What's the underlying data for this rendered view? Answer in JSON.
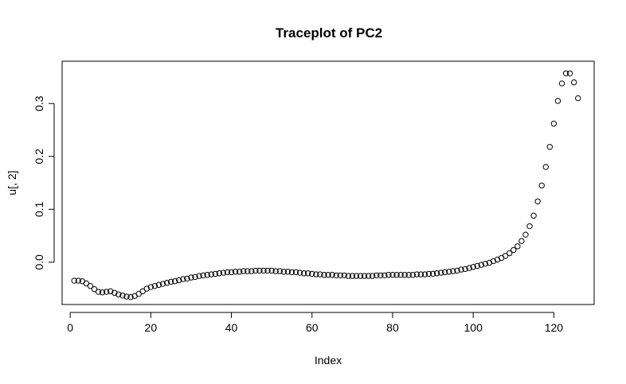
{
  "chart_data": {
    "type": "scatter",
    "title": "Traceplot of PC2",
    "xlabel": "Index",
    "ylabel": "u[, 2]",
    "xlim": [
      -2,
      130
    ],
    "ylim": [
      -0.08,
      0.38
    ],
    "x_ticks": [
      0,
      20,
      40,
      60,
      80,
      100,
      120
    ],
    "y_ticks": [
      0.0,
      0.1,
      0.2,
      0.3
    ],
    "x_tick_labels": [
      "0",
      "20",
      "40",
      "60",
      "80",
      "100",
      "120"
    ],
    "y_tick_labels": [
      "0.0",
      "0.1",
      "0.2",
      "0.3"
    ],
    "grid": false,
    "legend": "none",
    "marker": "open-circle",
    "color": "#000000",
    "series": [
      {
        "x": [
          1,
          2,
          3,
          4,
          5,
          6,
          7,
          8,
          9,
          10,
          11,
          12,
          13,
          14,
          15,
          16,
          17,
          18,
          19,
          20,
          21,
          22,
          23,
          24,
          25,
          26,
          27,
          28,
          29,
          30,
          31,
          32,
          33,
          34,
          35,
          36,
          37,
          38,
          39,
          40,
          41,
          42,
          43,
          44,
          45,
          46,
          47,
          48,
          49,
          50,
          51,
          52,
          53,
          54,
          55,
          56,
          57,
          58,
          59,
          60,
          61,
          62,
          63,
          64,
          65,
          66,
          67,
          68,
          69,
          70,
          71,
          72,
          73,
          74,
          75,
          76,
          77,
          78,
          79,
          80,
          81,
          82,
          83,
          84,
          85,
          86,
          87,
          88,
          89,
          90,
          91,
          92,
          93,
          94,
          95,
          96,
          97,
          98,
          99,
          100,
          101,
          102,
          103,
          104,
          105,
          106,
          107,
          108,
          109,
          110,
          111,
          112,
          113,
          114,
          115,
          116,
          117,
          118,
          119,
          120,
          121,
          122,
          123,
          124,
          125,
          126
        ],
        "values": [
          -0.035,
          -0.035,
          -0.036,
          -0.04,
          -0.045,
          -0.051,
          -0.056,
          -0.057,
          -0.056,
          -0.055,
          -0.058,
          -0.061,
          -0.063,
          -0.065,
          -0.066,
          -0.064,
          -0.06,
          -0.055,
          -0.05,
          -0.047,
          -0.045,
          -0.043,
          -0.041,
          -0.039,
          -0.037,
          -0.036,
          -0.034,
          -0.032,
          -0.031,
          -0.029,
          -0.028,
          -0.026,
          -0.025,
          -0.024,
          -0.023,
          -0.022,
          -0.021,
          -0.02,
          -0.019,
          -0.019,
          -0.018,
          -0.018,
          -0.017,
          -0.017,
          -0.017,
          -0.016,
          -0.016,
          -0.016,
          -0.016,
          -0.016,
          -0.017,
          -0.017,
          -0.018,
          -0.018,
          -0.019,
          -0.019,
          -0.02,
          -0.021,
          -0.021,
          -0.022,
          -0.023,
          -0.023,
          -0.024,
          -0.024,
          -0.024,
          -0.025,
          -0.025,
          -0.025,
          -0.026,
          -0.026,
          -0.026,
          -0.026,
          -0.026,
          -0.026,
          -0.026,
          -0.025,
          -0.025,
          -0.025,
          -0.024,
          -0.024,
          -0.024,
          -0.024,
          -0.024,
          -0.024,
          -0.024,
          -0.023,
          -0.023,
          -0.023,
          -0.022,
          -0.022,
          -0.021,
          -0.02,
          -0.019,
          -0.018,
          -0.017,
          -0.016,
          -0.014,
          -0.013,
          -0.011,
          -0.009,
          -0.007,
          -0.005,
          -0.003,
          -0.001,
          0.002,
          0.005,
          0.008,
          0.012,
          0.017,
          0.023,
          0.03,
          0.04,
          0.052,
          0.068,
          0.088,
          0.115,
          0.145,
          0.18,
          0.218,
          0.262,
          0.305,
          0.338,
          0.357,
          0.357,
          0.34,
          0.31
        ]
      }
    ]
  }
}
